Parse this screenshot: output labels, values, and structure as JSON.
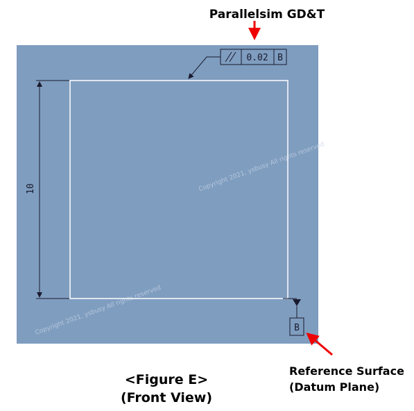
{
  "header": {
    "title": "Parallelsim GD&T"
  },
  "drawing": {
    "dimension": "10",
    "feature_control_frame": {
      "tolerance": "0.02",
      "datum": "B"
    },
    "datum_label": "B",
    "watermarks": [
      "Copyright 2021, ysbusy All rights reserved",
      "Copyright 2021, ysbusy All rights reserved"
    ]
  },
  "annotation": {
    "lines": [
      "Reference Surface",
      "(Datum Plane)"
    ]
  },
  "caption": {
    "lines": [
      "<Figure E>",
      "(Front View)"
    ]
  }
}
